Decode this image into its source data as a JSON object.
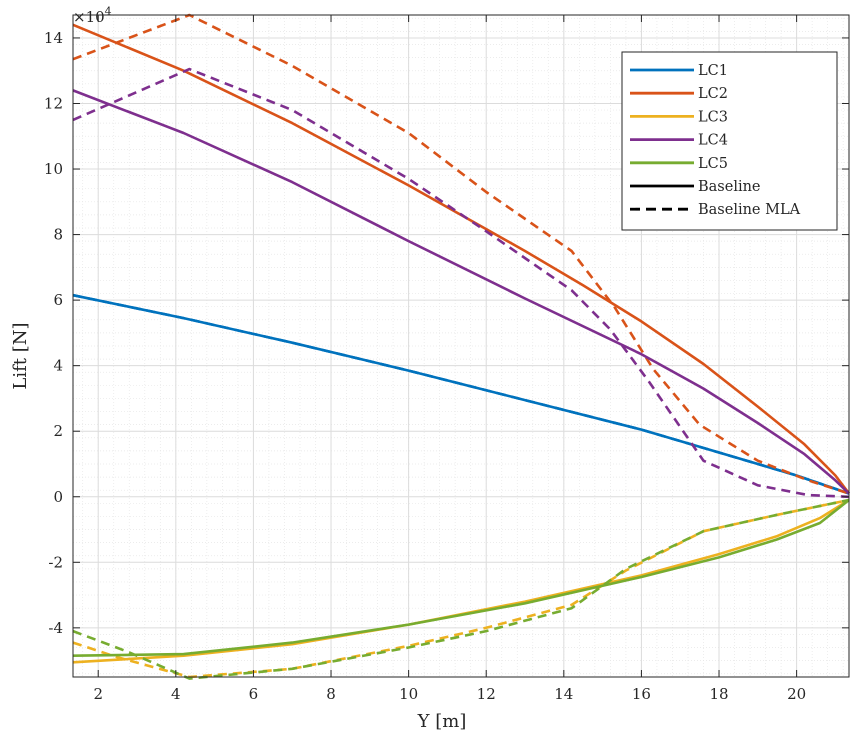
{
  "chart_data": {
    "type": "line",
    "xlabel": "Y [m]",
    "ylabel": "Lift [N]",
    "exponent_base": "×10",
    "exponent_power": "4",
    "xlim": [
      1.35,
      21.35
    ],
    "ylim": [
      -55000,
      147000
    ],
    "xticks": [
      2,
      4,
      6,
      8,
      10,
      12,
      14,
      16,
      18,
      20
    ],
    "yticks": [
      -40000,
      -20000,
      0,
      20000,
      40000,
      60000,
      80000,
      100000,
      120000,
      140000
    ],
    "ytick_labels": [
      "-4",
      "-2",
      "0",
      "2",
      "4",
      "6",
      "8",
      "10",
      "12",
      "14"
    ],
    "grid": true,
    "minor_grid": true,
    "legend_position": "top-right",
    "legend_entries": [
      {
        "label": "LC1",
        "color": "#0072BD",
        "style": "solid"
      },
      {
        "label": "LC2",
        "color": "#D95319",
        "style": "solid"
      },
      {
        "label": "LC3",
        "color": "#EDB120",
        "style": "solid"
      },
      {
        "label": "LC4",
        "color": "#7E2F8E",
        "style": "solid"
      },
      {
        "label": "LC5",
        "color": "#77AC30",
        "style": "solid"
      },
      {
        "label": "Baseline",
        "color": "#000000",
        "style": "solid"
      },
      {
        "label": "Baseline MLA",
        "color": "#000000",
        "style": "dashed"
      }
    ],
    "series": [
      {
        "case": "LC1",
        "variant": "Baseline",
        "color": "#0072BD",
        "dashed": false,
        "x": [
          1.35,
          4.2,
          7,
          10,
          13,
          16,
          18,
          20,
          21.35
        ],
        "y": [
          61500,
          54500,
          47000,
          38500,
          29500,
          20500,
          13500,
          6500,
          1000
        ]
      },
      {
        "case": "LC1",
        "variant": "Baseline MLA",
        "color": "#0072BD",
        "dashed": true,
        "x": [
          1.35,
          4.2,
          7,
          10,
          13,
          16,
          18,
          20,
          21.35
        ],
        "y": [
          61500,
          54500,
          47000,
          38500,
          29500,
          20500,
          13500,
          6500,
          1000
        ]
      },
      {
        "case": "LC2",
        "variant": "Baseline",
        "color": "#D95319",
        "dashed": false,
        "x": [
          1.35,
          4.2,
          7,
          10,
          13,
          14.5,
          16,
          17.6,
          19,
          20.2,
          21,
          21.35
        ],
        "y": [
          144000,
          130000,
          114000,
          95000,
          75000,
          64500,
          53500,
          40500,
          27500,
          16000,
          6500,
          1000
        ]
      },
      {
        "case": "LC2",
        "variant": "Baseline MLA",
        "color": "#D95319",
        "dashed": true,
        "x": [
          1.35,
          4.35,
          7,
          10,
          12,
          14.2,
          15.3,
          16.3,
          17.5,
          19,
          20.3,
          21.35
        ],
        "y": [
          133500,
          147000,
          131500,
          111000,
          93000,
          75000,
          58000,
          39000,
          22000,
          11000,
          5000,
          1000
        ]
      },
      {
        "case": "LC3",
        "variant": "Baseline",
        "color": "#EDB120",
        "dashed": false,
        "x": [
          1.35,
          4.2,
          7,
          10,
          13,
          16,
          18,
          19.5,
          20.6,
          21.35
        ],
        "y": [
          -50500,
          -48500,
          -45000,
          -39000,
          -32000,
          -24000,
          -17500,
          -12000,
          -6500,
          -1000
        ]
      },
      {
        "case": "LC3",
        "variant": "Baseline MLA",
        "color": "#EDB120",
        "dashed": true,
        "x": [
          1.35,
          2.5,
          4.35,
          7,
          10,
          12,
          14.2,
          15.6,
          17.6,
          19.5,
          21.35
        ],
        "y": [
          -44500,
          -49000,
          -55000,
          -52500,
          -45500,
          -40000,
          -33000,
          -22500,
          -10500,
          -5500,
          -1000
        ]
      },
      {
        "case": "LC4",
        "variant": "Baseline",
        "color": "#7E2F8E",
        "dashed": false,
        "x": [
          1.35,
          4.2,
          7,
          10,
          13,
          16,
          17.6,
          19,
          20.2,
          21,
          21.35
        ],
        "y": [
          124000,
          111000,
          96000,
          78000,
          60500,
          43500,
          33000,
          22500,
          13000,
          5000,
          1000
        ]
      },
      {
        "case": "LC4",
        "variant": "Baseline MLA",
        "color": "#7E2F8E",
        "dashed": true,
        "x": [
          1.35,
          4.35,
          7,
          10,
          12,
          14.2,
          15.2,
          16.2,
          17.6,
          19,
          20.3,
          21.35
        ],
        "y": [
          115000,
          130500,
          118000,
          97000,
          81000,
          63000,
          51000,
          35000,
          11000,
          3500,
          500,
          0
        ]
      },
      {
        "case": "LC5",
        "variant": "Baseline",
        "color": "#77AC30",
        "dashed": false,
        "x": [
          1.35,
          4.2,
          7,
          10,
          13,
          16,
          18,
          19.5,
          20.6,
          21.35
        ],
        "y": [
          -48500,
          -48000,
          -44500,
          -39000,
          -32500,
          -24500,
          -18500,
          -13000,
          -8000,
          -1000
        ]
      },
      {
        "case": "LC5",
        "variant": "Baseline MLA",
        "color": "#77AC30",
        "dashed": true,
        "x": [
          1.35,
          2.8,
          4.35,
          7,
          10,
          12,
          14.2,
          15.6,
          17.6,
          19.5,
          21.35
        ],
        "y": [
          -41000,
          -47500,
          -55500,
          -52500,
          -46000,
          -41000,
          -34000,
          -22000,
          -10500,
          -5500,
          -1000
        ]
      }
    ]
  }
}
